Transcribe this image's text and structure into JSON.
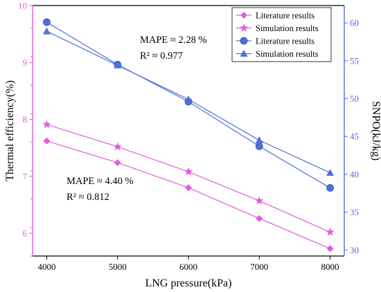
{
  "chart_data": {
    "type": "line",
    "title": "",
    "xlabel": "LNG pressure(kPa)",
    "ylabel_left": "Thermal efficiency(%)",
    "ylabel_right": "SNPO(kJ/kg)",
    "x": [
      4000,
      5000,
      6000,
      7000,
      8000
    ],
    "xlim": [
      3800,
      8200
    ],
    "x_ticks": [
      4000,
      5000,
      6000,
      7000,
      8000
    ],
    "ylim_left": [
      5.6,
      10
    ],
    "y_ticks_left": [
      6,
      7,
      8,
      9,
      10
    ],
    "ylim_right": [
      29.2,
      62.3
    ],
    "y_ticks_right": [
      30,
      35,
      40,
      45,
      50,
      55,
      60
    ],
    "colors": {
      "left_axis": "#e05ce0",
      "right_axis": "#4f6fd8",
      "frame": "#000000"
    },
    "series": [
      {
        "name": "Literature results",
        "axis": "left",
        "marker": "diamond",
        "color": "#e05ce0",
        "values": [
          7.62,
          7.24,
          6.8,
          6.26,
          5.73
        ]
      },
      {
        "name": "Simulation results",
        "axis": "left",
        "marker": "star",
        "color": "#e05ce0",
        "values": [
          7.91,
          7.52,
          7.08,
          6.57,
          6.02
        ]
      },
      {
        "name": "Literature results",
        "axis": "right",
        "marker": "circle",
        "color": "#4f6fd8",
        "values": [
          60.1,
          54.5,
          49.6,
          43.7,
          38.2
        ]
      },
      {
        "name": "Simulation results",
        "axis": "right",
        "marker": "triangle",
        "color": "#4f6fd8",
        "values": [
          58.9,
          54.4,
          49.9,
          44.5,
          40.2
        ]
      }
    ],
    "annotations": [
      {
        "line1": "MAPE ≈ 2.28 %",
        "line2": "R² ≈ 0.977"
      },
      {
        "line1": "MAPE ≈ 4.40 %",
        "line2": "R² ≈ 0.812"
      }
    ],
    "legend_placement": "top-right",
    "grid": false
  }
}
